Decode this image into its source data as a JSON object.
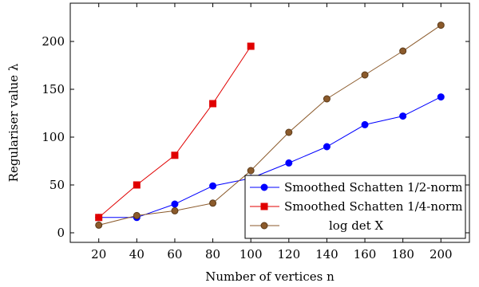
{
  "chart_data": {
    "type": "line",
    "xlabel": "Number of vertices n",
    "ylabel": "Regulariser value λ",
    "xlim": [
      5,
      215
    ],
    "ylim": [
      -10,
      240
    ],
    "xticks": [
      20,
      40,
      60,
      80,
      100,
      120,
      140,
      160,
      180,
      200
    ],
    "yticks": [
      0,
      50,
      100,
      150,
      200
    ],
    "grid": false,
    "legend_position": "bottom-right",
    "series": [
      {
        "name": "Smoothed Schatten 1/2-norm",
        "color": "#0000ff",
        "marker": "circle",
        "x": [
          20,
          40,
          60,
          80,
          100,
          120,
          140,
          160,
          180,
          200
        ],
        "y": [
          16,
          16,
          30,
          49,
          57,
          73,
          90,
          113,
          122,
          142
        ]
      },
      {
        "name": "Smoothed Schatten 1/4-norm",
        "color": "#e00000",
        "marker": "square",
        "x": [
          20,
          40,
          60,
          80,
          100
        ],
        "y": [
          16,
          50,
          81,
          135,
          195
        ]
      },
      {
        "name": "log det X",
        "color": "#8b5a2b",
        "marker": "circle",
        "x": [
          20,
          40,
          60,
          80,
          100,
          120,
          140,
          160,
          180,
          200
        ],
        "y": [
          8,
          18,
          23,
          31,
          65,
          105,
          140,
          165,
          190,
          217
        ]
      }
    ]
  }
}
